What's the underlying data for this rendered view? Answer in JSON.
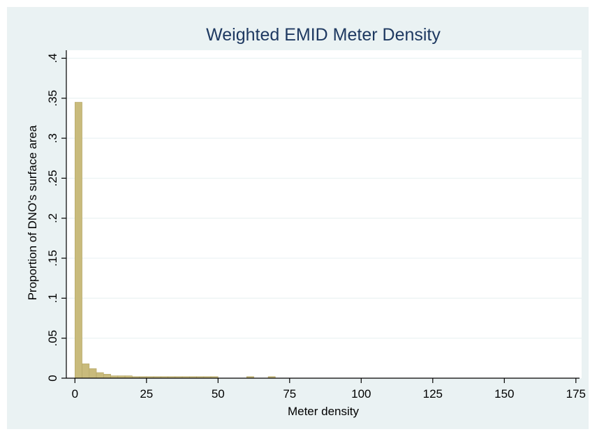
{
  "chart_data": {
    "type": "bar",
    "title": "Weighted EMID Meter Density",
    "xlabel": "Meter density",
    "ylabel": "Proportion of DNO's surface area",
    "xlim": [
      -3,
      177
    ],
    "ylim": [
      0,
      0.41
    ],
    "x_ticks": [
      0,
      25,
      50,
      75,
      100,
      125,
      150,
      175
    ],
    "y_ticks": [
      0,
      0.05,
      0.1,
      0.15,
      0.2,
      0.25,
      0.3,
      0.35,
      0.4
    ],
    "y_tick_labels": [
      "0",
      ".05",
      ".1",
      ".15",
      ".2",
      ".25",
      ".3",
      ".35",
      ".4"
    ],
    "grid": true,
    "bin_width": 2.5,
    "bins": [
      {
        "x0": 0,
        "value": 0.345
      },
      {
        "x0": 2.5,
        "value": 0.018
      },
      {
        "x0": 5,
        "value": 0.012
      },
      {
        "x0": 7.5,
        "value": 0.007
      },
      {
        "x0": 10,
        "value": 0.005
      },
      {
        "x0": 12.5,
        "value": 0.003
      },
      {
        "x0": 15,
        "value": 0.003
      },
      {
        "x0": 17.5,
        "value": 0.003
      },
      {
        "x0": 20,
        "value": 0.002
      },
      {
        "x0": 22.5,
        "value": 0.002
      },
      {
        "x0": 25,
        "value": 0.002
      },
      {
        "x0": 27.5,
        "value": 0.002
      },
      {
        "x0": 30,
        "value": 0.002
      },
      {
        "x0": 32.5,
        "value": 0.002
      },
      {
        "x0": 35,
        "value": 0.002
      },
      {
        "x0": 37.5,
        "value": 0.002
      },
      {
        "x0": 40,
        "value": 0.002
      },
      {
        "x0": 42.5,
        "value": 0.002
      },
      {
        "x0": 45,
        "value": 0.002
      },
      {
        "x0": 47.5,
        "value": 0.002
      },
      {
        "x0": 60,
        "value": 0.002
      },
      {
        "x0": 67.5,
        "value": 0.002
      }
    ],
    "colors": {
      "bar_fill": "#c9bb7c",
      "bar_stroke": "#b3a565",
      "outer_background": "#eaf2f3",
      "plot_background": "#ffffff",
      "grid": "#eaf2f3",
      "title": "#1e3961",
      "text": "#000000"
    }
  }
}
